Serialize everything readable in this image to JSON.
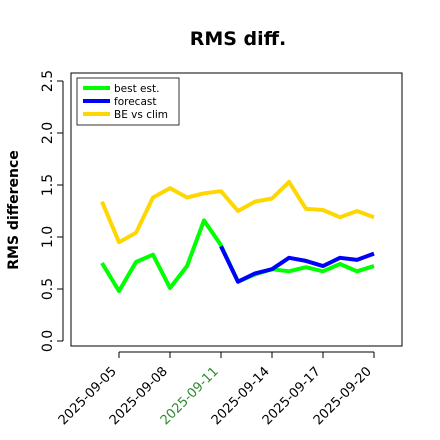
{
  "chart_data": {
    "type": "line",
    "title": "RMS diff.",
    "xlabel": "",
    "ylabel": "RMS difference",
    "ylim": [
      0.0,
      2.5
    ],
    "yticks": [
      0.0,
      0.5,
      1.0,
      1.5,
      2.0,
      2.5
    ],
    "y_tick_labels": [
      "0.0",
      "0.5",
      "1.0",
      "1.5",
      "2.0",
      "2.5"
    ],
    "x": [
      "2025-09-04",
      "2025-09-05",
      "2025-09-06",
      "2025-09-07",
      "2025-09-08",
      "2025-09-09",
      "2025-09-10",
      "2025-09-11",
      "2025-09-12",
      "2025-09-13",
      "2025-09-14",
      "2025-09-15",
      "2025-09-16",
      "2025-09-17",
      "2025-09-18",
      "2025-09-19",
      "2025-09-20"
    ],
    "x_tick_labels": [
      "2025-09-05",
      "2025-09-08",
      "2025-09-11",
      "2025-09-14",
      "2025-09-17",
      "2025-09-20"
    ],
    "highlighted_tick": "2025-09-11",
    "highlight_color": "#2e8b2e",
    "grid": false,
    "legend_position": "top-left",
    "series": [
      {
        "name": "best est.",
        "color": "#00ff00",
        "values": [
          0.75,
          0.48,
          0.76,
          0.83,
          0.51,
          0.72,
          1.16,
          0.92,
          0.57,
          0.64,
          0.69,
          0.67,
          0.71,
          0.67,
          0.74,
          0.67,
          0.72
        ]
      },
      {
        "name": "forecast",
        "color": "#0000ff",
        "start": "2025-09-11",
        "values": [
          null,
          null,
          null,
          null,
          null,
          null,
          null,
          0.91,
          0.57,
          0.65,
          0.69,
          0.8,
          0.77,
          0.72,
          0.8,
          0.78,
          0.84
        ]
      },
      {
        "name": "BE vs clim",
        "color": "#ffd700",
        "values": [
          1.34,
          0.95,
          1.04,
          1.38,
          1.47,
          1.38,
          1.42,
          1.44,
          1.25,
          1.34,
          1.37,
          1.53,
          1.27,
          1.26,
          1.19,
          1.25,
          1.19
        ]
      }
    ]
  }
}
